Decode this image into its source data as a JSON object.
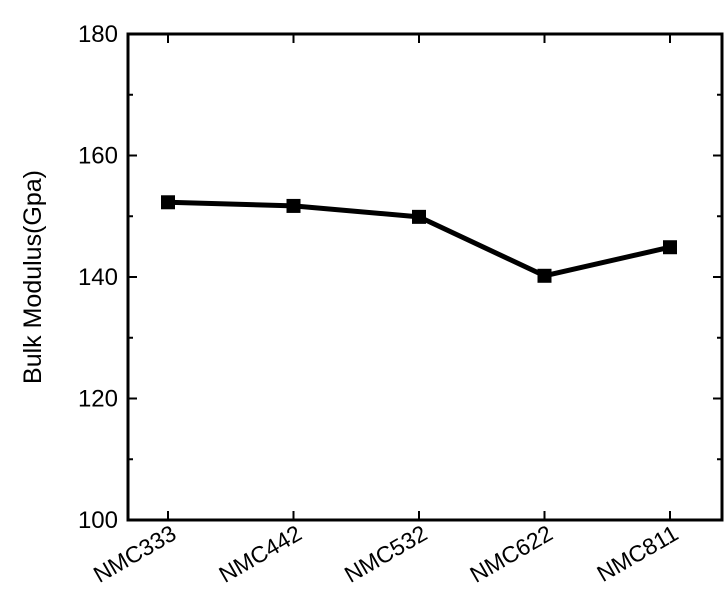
{
  "chart_data": {
    "type": "line",
    "title": "",
    "xlabel": "",
    "ylabel": "Bulk Modulus(Gpa)",
    "categories": [
      "NMC333",
      "NMC442",
      "NMC532",
      "NMC622",
      "NMC811"
    ],
    "series": [
      {
        "values": [
          152.3,
          151.7,
          149.9,
          140.2,
          144.9
        ]
      }
    ],
    "ylim": [
      100,
      180
    ],
    "yticks": [
      100,
      120,
      140,
      160,
      180
    ],
    "y_tick_labels": [
      "100",
      "120",
      "140",
      "160",
      "180"
    ],
    "grid": false,
    "legend": "none",
    "marker": "square",
    "line_color": "#000000"
  }
}
